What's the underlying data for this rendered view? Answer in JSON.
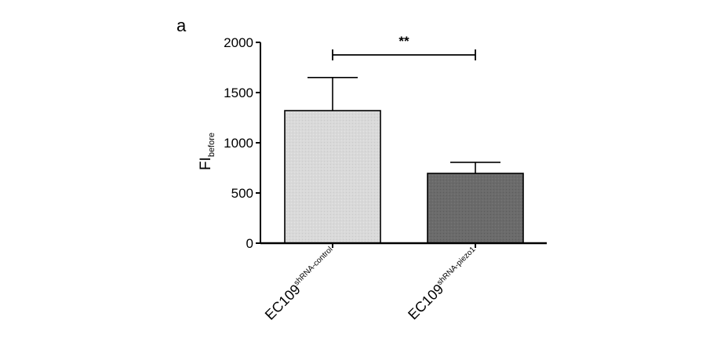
{
  "panel_label": "a",
  "chart_data": {
    "type": "bar",
    "ylabel_main": "FI",
    "ylabel_sub": "before",
    "ylim": [
      0,
      2000
    ],
    "yticks": [
      0,
      500,
      1000,
      1500,
      2000
    ],
    "ytick_labels": [
      "0",
      "500",
      "1000",
      "1500",
      "2000"
    ],
    "categories": [
      {
        "main": "EC109",
        "sub": "shRNA-control"
      },
      {
        "main": "EC109",
        "sub": "shRNA-piezo1"
      }
    ],
    "values": [
      1320,
      695
    ],
    "error_upper": [
      330,
      110
    ],
    "bar_colors": [
      "#d9d9d9",
      "#6b6b6b"
    ],
    "significance": {
      "label": "**",
      "between": [
        0,
        1
      ]
    }
  }
}
